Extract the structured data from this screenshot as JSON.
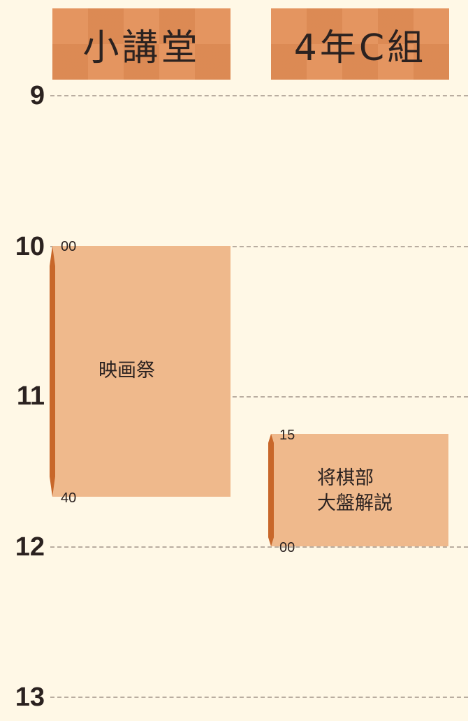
{
  "rooms": [
    {
      "name": "小講堂"
    },
    {
      "name": "4年C組"
    }
  ],
  "hours": [
    "9",
    "10",
    "11",
    "12",
    "13"
  ],
  "events": [
    {
      "room": "小講堂",
      "title_lines": [
        "映画祭"
      ],
      "start_minute_label": "00",
      "end_minute_label": "40"
    },
    {
      "room": "4年C組",
      "title_lines": [
        "将棋部",
        "大盤解説"
      ],
      "start_minute_label": "15",
      "end_minute_label": "00"
    }
  ],
  "colors": {
    "background": "#fff8e6",
    "header": "#e49560",
    "event_fill": "#efb98c",
    "event_accent": "#c8672a",
    "gridline": "#b9ada0"
  }
}
